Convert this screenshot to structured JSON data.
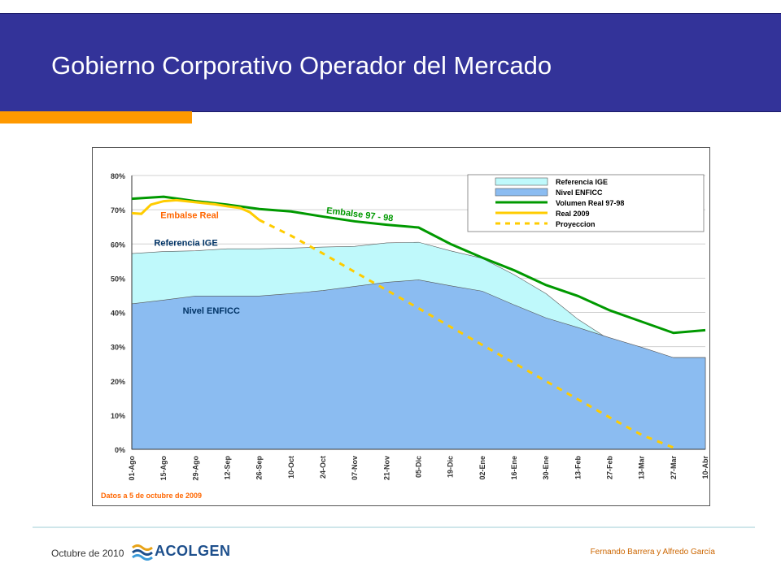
{
  "header": {
    "title": "Gobierno Corporativo Operador del Mercado"
  },
  "footer": {
    "date": "Octubre de 2010",
    "logo_text": "ACOLGEN",
    "author": "Fernando Barrera y Alfredo García"
  },
  "colors": {
    "header_bg": "#333399",
    "accent_bar": "#ff9900",
    "referencia_ige_fill": "#bff9fb",
    "nivel_enficc_fill": "#8bbcf1",
    "volumen_real": "#009900",
    "real_2009": "#ffcc00",
    "proyeccion": "#ffcc00"
  },
  "chart_data": {
    "type": "area",
    "ylim": [
      0,
      80
    ],
    "yticks": [
      "0%",
      "10%",
      "20%",
      "30%",
      "40%",
      "50%",
      "60%",
      "70%",
      "80%"
    ],
    "categories": [
      "01-Ago",
      "15-Ago",
      "29-Ago",
      "12-Sep",
      "26-Sep",
      "10-Oct",
      "24-Oct",
      "07-Nov",
      "21-Nov",
      "05-Dic",
      "19-Dic",
      "02-Ene",
      "16-Ene",
      "30-Ene",
      "13-Feb",
      "27-Feb",
      "13-Mar",
      "27-Mar",
      "10-Abr"
    ],
    "legend": [
      "Referencia IGE",
      "Nivel ENFICC",
      "Volumen Real 97-98",
      "Real 2009",
      "Proyeccion"
    ],
    "legend_position": "top-right",
    "grid": true,
    "series": [
      {
        "name": "Referencia IGE",
        "kind": "area",
        "values": [
          57.2,
          57.8,
          58,
          58.6,
          58.6,
          58.8,
          59.1,
          59.3,
          60.3,
          60.5,
          58,
          55.8,
          51,
          45.5,
          38,
          32,
          29.5,
          26.8,
          26.8
        ]
      },
      {
        "name": "Nivel ENFICC",
        "kind": "area",
        "values": [
          42.5,
          43.6,
          44.8,
          44.8,
          44.8,
          45.5,
          46.4,
          47.6,
          48.8,
          49.5,
          47.8,
          46.2,
          42.2,
          38.4,
          35.6,
          32.6,
          29.8,
          26.8,
          26.8
        ]
      },
      {
        "name": "Volumen Real 97-98",
        "kind": "line",
        "values": [
          73.2,
          73.8,
          72.5,
          71.5,
          70.2,
          69.5,
          68,
          66.6,
          65.6,
          64.8,
          60,
          56,
          52.3,
          48,
          44.8,
          40.6,
          37.3,
          34,
          34.8
        ]
      },
      {
        "name": "Real 2009",
        "kind": "line",
        "x": [
          0,
          0.3,
          0.6,
          1,
          1.4,
          1.8,
          2.2,
          2.6,
          3,
          3.4,
          3.7,
          4
        ],
        "values": [
          69,
          68.8,
          71.5,
          72.5,
          72.8,
          72.4,
          72,
          71.6,
          71,
          70.5,
          69.3,
          67
        ]
      },
      {
        "name": "Proyeccion",
        "kind": "dashed",
        "x": [
          4,
          5,
          6,
          7,
          8,
          9,
          10,
          11,
          12,
          13,
          14,
          15,
          16,
          17
        ],
        "values": [
          67,
          62.4,
          57.2,
          51.8,
          46.5,
          41.2,
          35.8,
          30.5,
          25.2,
          19.9,
          14.6,
          9.3,
          4.2,
          0.5
        ]
      }
    ],
    "annotations": [
      {
        "text": "Embalse 97 - 98",
        "color": "#009900",
        "at_x": 6.1,
        "at_y": 69
      },
      {
        "text": "Embalse Real",
        "color": "#ff6600",
        "at_x": 0.9,
        "at_y": 67.5
      },
      {
        "text": "Referencia IGE",
        "color": "#003366",
        "at_x": 0.7,
        "at_y": 59.5
      },
      {
        "text": "Nivel ENFICC",
        "color": "#003366",
        "at_x": 1.6,
        "at_y": 39.6
      }
    ],
    "note": "Datos  a 5 de octubre de 2009"
  }
}
